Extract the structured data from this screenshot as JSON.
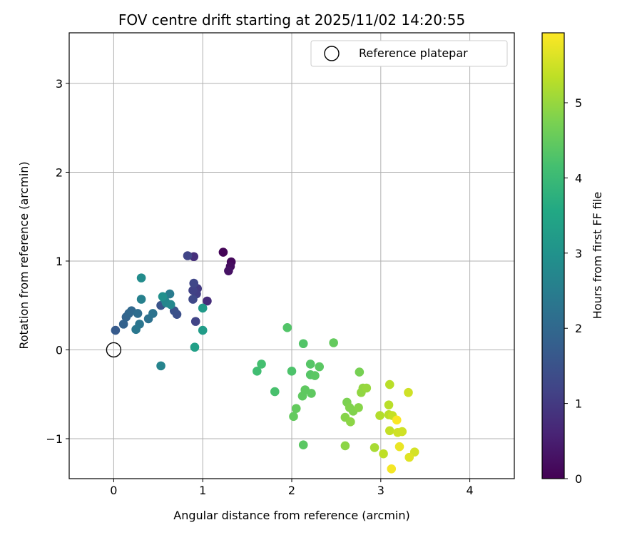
{
  "chart_data": {
    "type": "scatter",
    "title": "FOV centre drift starting at 2025/11/02 14:20:55",
    "xlabel": "Angular distance from reference (arcmin)",
    "ylabel": "Rotation from reference (arcmin)",
    "xlim": [
      -0.5,
      4.5
    ],
    "ylim": [
      -1.45,
      3.57
    ],
    "xticks": [
      0,
      1,
      2,
      3,
      4
    ],
    "xtick_labels": [
      "0",
      "1",
      "2",
      "3",
      "4"
    ],
    "yticks": [
      -1,
      0,
      1,
      2,
      3
    ],
    "ytick_labels": [
      "−1",
      "0",
      "1",
      "2",
      "3"
    ],
    "grid": true,
    "legend": {
      "position": "top-right",
      "entries": [
        "Reference platepar"
      ]
    },
    "reference_point": {
      "x": 0,
      "y": 0,
      "marker": "open-circle",
      "label": "Reference platepar"
    },
    "colorbar": {
      "label": "Hours from first FF file",
      "colormap": "viridis",
      "range": [
        0,
        5.93
      ],
      "ticks": [
        0,
        1,
        2,
        3,
        4,
        5
      ],
      "tick_labels": [
        "0",
        "1",
        "2",
        "3",
        "4",
        "5"
      ]
    },
    "series": [
      {
        "name": "FOV centre",
        "points": [
          {
            "x": 1.23,
            "y": 1.1,
            "hours": 0.05
          },
          {
            "x": 1.32,
            "y": 0.99,
            "hours": 0.12
          },
          {
            "x": 1.31,
            "y": 0.94,
            "hours": 0.2
          },
          {
            "x": 1.29,
            "y": 0.89,
            "hours": 0.28
          },
          {
            "x": 1.05,
            "y": 0.55,
            "hours": 0.75
          },
          {
            "x": 0.9,
            "y": 1.05,
            "hours": 0.8
          },
          {
            "x": 0.94,
            "y": 0.69,
            "hours": 1.0
          },
          {
            "x": 0.93,
            "y": 0.63,
            "hours": 1.08
          },
          {
            "x": 0.89,
            "y": 0.67,
            "hours": 1.15
          },
          {
            "x": 0.92,
            "y": 0.32,
            "hours": 1.2
          },
          {
            "x": 0.83,
            "y": 1.06,
            "hours": 1.2
          },
          {
            "x": 0.9,
            "y": 0.75,
            "hours": 1.25
          },
          {
            "x": 0.89,
            "y": 0.57,
            "hours": 1.3
          },
          {
            "x": 0.71,
            "y": 0.4,
            "hours": 1.45
          },
          {
            "x": 0.68,
            "y": 0.44,
            "hours": 1.5
          },
          {
            "x": 0.53,
            "y": 0.5,
            "hours": 1.55
          },
          {
            "x": 0.02,
            "y": 0.22,
            "hours": 1.7
          },
          {
            "x": 0.11,
            "y": 0.29,
            "hours": 1.85
          },
          {
            "x": 0.14,
            "y": 0.37,
            "hours": 1.9
          },
          {
            "x": 0.17,
            "y": 0.41,
            "hours": 1.95
          },
          {
            "x": 0.2,
            "y": 0.44,
            "hours": 2.0
          },
          {
            "x": 0.27,
            "y": 0.41,
            "hours": 2.1
          },
          {
            "x": 0.39,
            "y": 0.35,
            "hours": 2.2
          },
          {
            "x": 0.44,
            "y": 0.41,
            "hours": 2.25
          },
          {
            "x": 0.29,
            "y": 0.29,
            "hours": 2.3
          },
          {
            "x": 0.25,
            "y": 0.23,
            "hours": 2.35
          },
          {
            "x": 0.63,
            "y": 0.63,
            "hours": 2.45
          },
          {
            "x": 0.31,
            "y": 0.57,
            "hours": 2.55
          },
          {
            "x": 0.57,
            "y": 0.57,
            "hours": 2.6
          },
          {
            "x": 0.53,
            "y": -0.18,
            "hours": 2.65
          },
          {
            "x": 0.59,
            "y": 0.53,
            "hours": 2.7
          },
          {
            "x": 0.64,
            "y": 0.51,
            "hours": 2.75
          },
          {
            "x": 0.31,
            "y": 0.81,
            "hours": 2.85
          },
          {
            "x": 0.55,
            "y": 0.6,
            "hours": 2.95
          },
          {
            "x": 1.0,
            "y": 0.47,
            "hours": 3.2
          },
          {
            "x": 1.0,
            "y": 0.22,
            "hours": 3.25
          },
          {
            "x": 0.91,
            "y": 0.03,
            "hours": 3.35
          },
          {
            "x": 1.61,
            "y": -0.24,
            "hours": 4.1
          },
          {
            "x": 1.66,
            "y": -0.16,
            "hours": 4.15
          },
          {
            "x": 1.81,
            "y": -0.47,
            "hours": 4.2
          },
          {
            "x": 2.0,
            "y": -0.24,
            "hours": 4.25
          },
          {
            "x": 1.95,
            "y": 0.25,
            "hours": 4.3
          },
          {
            "x": 2.13,
            "y": 0.07,
            "hours": 4.3
          },
          {
            "x": 2.21,
            "y": -0.16,
            "hours": 4.35
          },
          {
            "x": 2.21,
            "y": -0.28,
            "hours": 4.35
          },
          {
            "x": 2.26,
            "y": -0.29,
            "hours": 4.4
          },
          {
            "x": 2.31,
            "y": -0.19,
            "hours": 4.4
          },
          {
            "x": 2.15,
            "y": -0.45,
            "hours": 4.45
          },
          {
            "x": 2.12,
            "y": -0.52,
            "hours": 4.45
          },
          {
            "x": 2.22,
            "y": -0.49,
            "hours": 4.45
          },
          {
            "x": 2.05,
            "y": -0.66,
            "hours": 4.5
          },
          {
            "x": 2.02,
            "y": -0.75,
            "hours": 4.5
          },
          {
            "x": 2.13,
            "y": -1.07,
            "hours": 4.4
          },
          {
            "x": 2.47,
            "y": 0.08,
            "hours": 4.5
          },
          {
            "x": 2.76,
            "y": -0.25,
            "hours": 4.7
          },
          {
            "x": 2.62,
            "y": -0.59,
            "hours": 4.75
          },
          {
            "x": 2.65,
            "y": -0.65,
            "hours": 4.8
          },
          {
            "x": 2.69,
            "y": -0.69,
            "hours": 4.8
          },
          {
            "x": 2.75,
            "y": -0.65,
            "hours": 4.85
          },
          {
            "x": 2.6,
            "y": -0.76,
            "hours": 4.85
          },
          {
            "x": 2.66,
            "y": -0.81,
            "hours": 4.9
          },
          {
            "x": 2.6,
            "y": -1.08,
            "hours": 4.9
          },
          {
            "x": 2.78,
            "y": -0.48,
            "hours": 4.95
          },
          {
            "x": 2.8,
            "y": -0.43,
            "hours": 4.95
          },
          {
            "x": 2.84,
            "y": -0.43,
            "hours": 5.0
          },
          {
            "x": 2.93,
            "y": -1.1,
            "hours": 5.15
          },
          {
            "x": 2.99,
            "y": -0.74,
            "hours": 5.25
          },
          {
            "x": 3.09,
            "y": -0.73,
            "hours": 5.3
          },
          {
            "x": 3.09,
            "y": -0.62,
            "hours": 5.3
          },
          {
            "x": 3.1,
            "y": -0.39,
            "hours": 5.3
          },
          {
            "x": 3.03,
            "y": -1.17,
            "hours": 5.35
          },
          {
            "x": 3.1,
            "y": -0.91,
            "hours": 5.4
          },
          {
            "x": 3.13,
            "y": -0.74,
            "hours": 5.4
          },
          {
            "x": 3.19,
            "y": -0.93,
            "hours": 5.5
          },
          {
            "x": 3.24,
            "y": -0.92,
            "hours": 5.5
          },
          {
            "x": 3.31,
            "y": -0.48,
            "hours": 5.5
          },
          {
            "x": 3.38,
            "y": -1.15,
            "hours": 5.55
          },
          {
            "x": 3.32,
            "y": -1.21,
            "hours": 5.65
          },
          {
            "x": 3.21,
            "y": -1.09,
            "hours": 5.75
          },
          {
            "x": 3.12,
            "y": -1.34,
            "hours": 5.85
          },
          {
            "x": 3.18,
            "y": -0.79,
            "hours": 5.9
          }
        ]
      }
    ]
  }
}
